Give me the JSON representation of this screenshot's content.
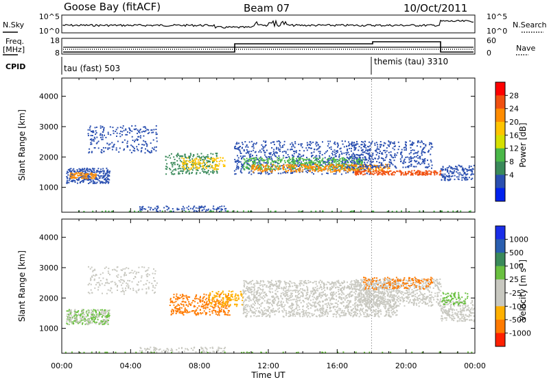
{
  "header": {
    "station": "Goose Bay (fitACF)",
    "beam": "Beam 07",
    "date": "10/Oct/2011"
  },
  "strip_labels": {
    "nsky": "N.Sky",
    "nsearch": "N.Search",
    "freq_line1": "Freq.",
    "freq_line2": "[MHz]",
    "nave": "Nave",
    "cpid": "CPID"
  },
  "strip_ticks": {
    "noise_left": [
      "10^5",
      "10^0"
    ],
    "noise_right": [
      "10^5",
      "10^0"
    ],
    "freq_left": [
      "18",
      "8"
    ],
    "nave_right": [
      "60",
      "0"
    ]
  },
  "cpid_segments": [
    {
      "label": "tau (fast) 503",
      "start_hour": 0
    },
    {
      "label": "themis (tau) 3310",
      "start_hour": 18
    }
  ],
  "chart_data": [
    {
      "type": "heatmap",
      "name": "power",
      "xlabel": "Time UT",
      "ylabel": "Slant Range [km]",
      "xlim_hours": [
        0,
        24
      ],
      "ylim_km": [
        180,
        4600
      ],
      "xticks": [
        "00:00",
        "04:00",
        "08:00",
        "12:00",
        "16:00",
        "20:00",
        "00:00"
      ],
      "yticks": [
        1000,
        2000,
        3000,
        4000
      ],
      "colorbar_label": "Power [dB]",
      "colorbar_ticks": [
        "28",
        "24",
        "20",
        "16",
        "12",
        "8",
        "4"
      ],
      "colorbar_colors": [
        "#ff0000",
        "#f05010",
        "#ff8c00",
        "#ffc400",
        "#d6e000",
        "#4ab848",
        "#3a8a5a",
        "#2a4fb0",
        "#0022ee"
      ]
    },
    {
      "type": "heatmap",
      "name": "velocity",
      "xlabel": "Time UT",
      "ylabel": "Slant Range [km]",
      "xlim_hours": [
        0,
        24
      ],
      "ylim_km": [
        180,
        4600
      ],
      "xticks": [
        "00:00",
        "04:00",
        "08:00",
        "12:00",
        "16:00",
        "20:00",
        "00:00"
      ],
      "yticks": [
        1000,
        2000,
        3000,
        4000
      ],
      "colorbar_label": "Velocity [m s",
      "colorbar_label_sup": "-1",
      "colorbar_label_end": "]",
      "colorbar_ticks": [
        "1000",
        "500",
        "100",
        "25",
        "-25",
        "-100",
        "-500",
        "-1000"
      ],
      "colorbar_colors": [
        "#1a2ee8",
        "#2a5fb0",
        "#3a8a5a",
        "#6ac040",
        "#c8c8c0",
        "#c8c8c0",
        "#ffb000",
        "#ff7a00",
        "#ff2000"
      ]
    }
  ],
  "bottom": {
    "xlabel": "Time UT",
    "xticks": [
      "00:00",
      "04:00",
      "08:00",
      "12:00",
      "16:00",
      "20:00",
      "00:00"
    ]
  }
}
